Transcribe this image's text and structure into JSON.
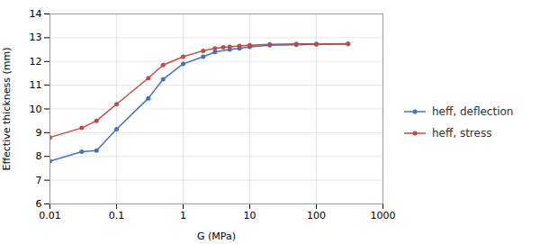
{
  "chart_data": {
    "type": "line",
    "xlabel": "G (MPa)",
    "ylabel": "Effective thickness (mm)",
    "log": "x",
    "xlim": [
      0.01,
      1000
    ],
    "ylim": [
      6.0,
      14.0
    ],
    "xticks": [
      0.01,
      0.1,
      1,
      10,
      100,
      1000
    ],
    "yticks": [
      6,
      7,
      8,
      9,
      10,
      11,
      12,
      13,
      14
    ],
    "grid": true,
    "legend": "right",
    "series": [
      {
        "name": "heff, deflection",
        "color": "#4472C4",
        "marker": "circle",
        "x": [
          0.01,
          0.03,
          0.05,
          0.1,
          0.3,
          0.5,
          1.0,
          2.0,
          3.0,
          5.0,
          7.0,
          10.0,
          20.0,
          50.0,
          100.0,
          300.0
        ],
        "values": [
          7.8,
          8.2,
          8.25,
          9.15,
          10.45,
          11.25,
          11.9,
          12.2,
          12.4,
          12.5,
          12.55,
          12.62,
          12.68,
          12.7,
          12.72,
          12.73
        ]
      },
      {
        "name": "heff, stress",
        "color": "#BE4B48",
        "marker": "circle",
        "x": [
          0.01,
          0.03,
          0.05,
          0.1,
          0.3,
          0.5,
          1.0,
          2.0,
          3.0,
          4.0,
          5.0,
          7.0,
          10.0,
          20.0,
          50.0,
          100.0,
          300.0
        ],
        "values": [
          8.8,
          9.2,
          9.5,
          10.2,
          11.3,
          11.85,
          12.2,
          12.45,
          12.55,
          12.6,
          12.62,
          12.65,
          12.68,
          12.72,
          12.74,
          12.74,
          12.75
        ]
      }
    ]
  }
}
